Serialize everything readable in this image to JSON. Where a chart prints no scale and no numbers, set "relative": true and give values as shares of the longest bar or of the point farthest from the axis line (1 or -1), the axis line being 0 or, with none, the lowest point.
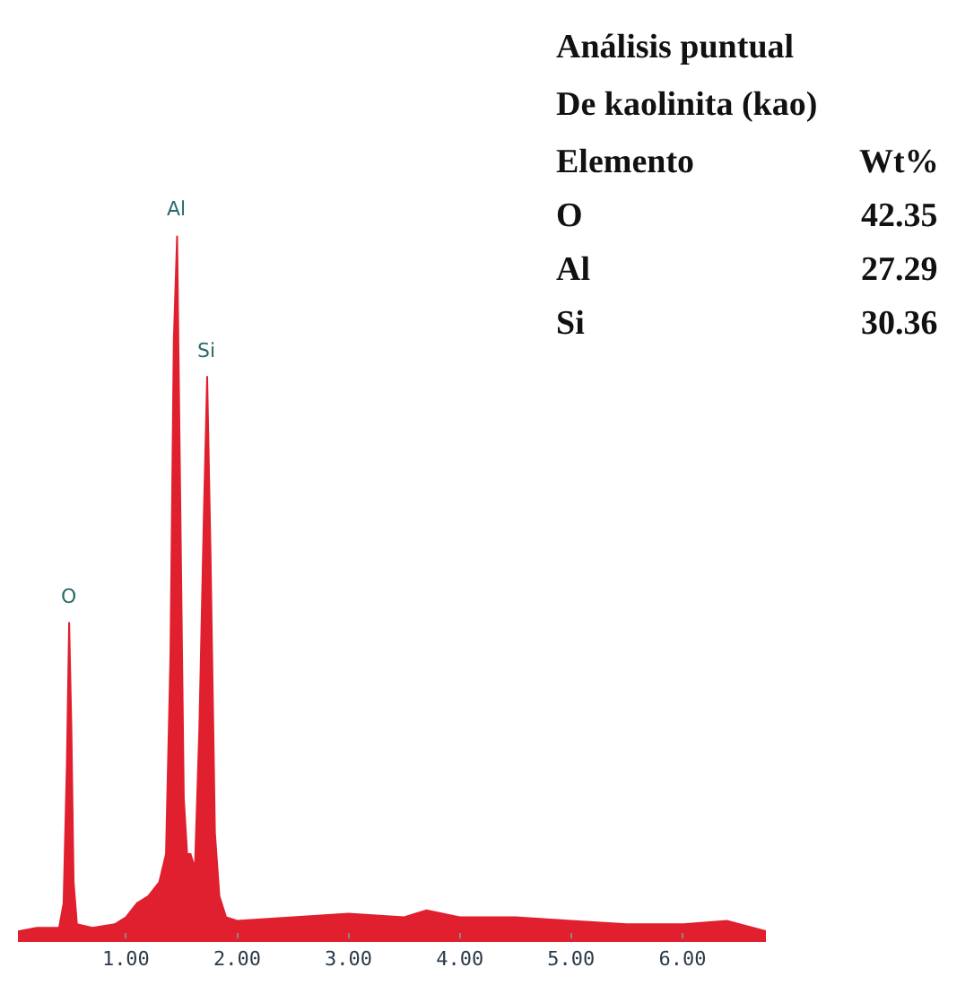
{
  "chart_data": {
    "type": "area",
    "title": "Análisis puntual",
    "subtitle": "De kaolinita (kao)",
    "relative": true,
    "tick_labels": "x",
    "grid": false,
    "x": [
      0.03,
      0.2,
      0.4,
      0.44,
      0.47,
      0.49,
      0.51,
      0.53,
      0.56,
      0.7,
      0.9,
      1.0,
      1.1,
      1.2,
      1.3,
      1.36,
      1.4,
      1.43,
      1.46,
      1.49,
      1.52,
      1.55,
      1.58,
      1.62,
      1.66,
      1.7,
      1.73,
      1.76,
      1.8,
      1.84,
      1.9,
      2.0,
      2.5,
      3.0,
      3.5,
      3.7,
      4.0,
      4.5,
      5.0,
      5.5,
      6.0,
      6.4,
      6.75
    ],
    "series": [
      {
        "color": "#e0202e",
        "values": [
          0.01,
          0.015,
          0.015,
          0.05,
          0.25,
          0.45,
          0.3,
          0.08,
          0.02,
          0.015,
          0.02,
          0.03,
          0.05,
          0.06,
          0.08,
          0.12,
          0.4,
          0.85,
          1.0,
          0.6,
          0.2,
          0.12,
          0.12,
          0.1,
          0.3,
          0.6,
          0.8,
          0.55,
          0.15,
          0.06,
          0.03,
          0.025,
          0.03,
          0.035,
          0.03,
          0.04,
          0.03,
          0.03,
          0.025,
          0.02,
          0.02,
          0.025,
          0.01
        ]
      }
    ],
    "xlim": [
      0.03,
      6.75
    ],
    "xticks": [
      {
        "value": 1,
        "label": "1.00"
      },
      {
        "value": 2,
        "label": "2.00"
      },
      {
        "value": 3,
        "label": "3.00"
      },
      {
        "value": 4,
        "label": "4.00"
      },
      {
        "value": 5,
        "label": "5.00"
      },
      {
        "value": 6,
        "label": "6.00"
      }
    ],
    "annotations": [
      {
        "text": "O",
        "x": 0.49,
        "y": 0.45
      },
      {
        "text": "Al",
        "x": 1.46,
        "y": 1.0
      },
      {
        "text": "Si",
        "x": 1.73,
        "y": 0.8
      },
      "Elemento",
      "Wt%",
      "O",
      "42.35",
      "Al",
      "27.29",
      "Si",
      "30.36"
    ]
  }
}
